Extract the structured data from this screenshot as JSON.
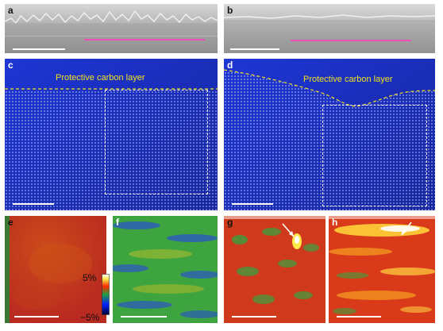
{
  "panels": {
    "a": {
      "label": "a"
    },
    "b": {
      "label": "b"
    },
    "c": {
      "label": "c",
      "annotation": "Protective carbon layer"
    },
    "d": {
      "label": "d",
      "annotation": "Protective carbon layer"
    },
    "e": {
      "label": "e"
    },
    "f": {
      "label": "f"
    },
    "g": {
      "label": "g"
    },
    "h": {
      "label": "h"
    }
  },
  "colorbar": {
    "max_label": "5%",
    "min_label": "−5%"
  },
  "colors": {
    "sem_gray": "#9a9a9a",
    "haadf_blue": "#1a2fc8",
    "scale_bar": "#ffffff",
    "marker": "#ee4fb8",
    "carbon_text": "#f2e21c"
  }
}
